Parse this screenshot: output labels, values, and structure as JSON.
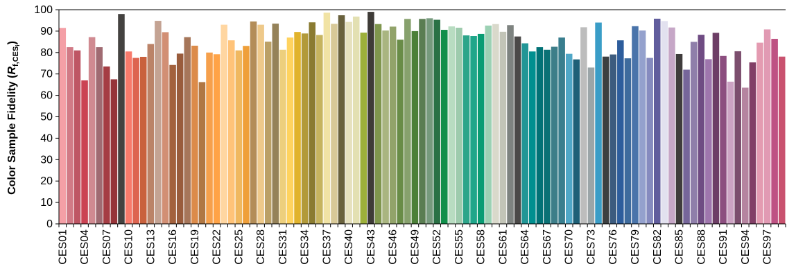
{
  "chart_data": {
    "type": "bar",
    "title": "",
    "xlabel": "",
    "ylabel": "Color Sample Fidelity (",
    "ylabel_var": "R",
    "ylabel_sub": "f,CES",
    "ylabel_sub_i": "i",
    "ylabel_close": ")",
    "ylim": [
      0,
      100
    ],
    "yticks": [
      0,
      10,
      20,
      30,
      40,
      50,
      60,
      70,
      80,
      90,
      100
    ],
    "grid": false,
    "categories": [
      "CES01",
      "CES02",
      "CES03",
      "CES04",
      "CES05",
      "CES06",
      "CES07",
      "CES08",
      "CES09",
      "CES10",
      "CES11",
      "CES12",
      "CES13",
      "CES14",
      "CES15",
      "CES16",
      "CES17",
      "CES18",
      "CES19",
      "CES20",
      "CES21",
      "CES22",
      "CES23",
      "CES24",
      "CES25",
      "CES26",
      "CES27",
      "CES28",
      "CES29",
      "CES30",
      "CES31",
      "CES32",
      "CES33",
      "CES34",
      "CES35",
      "CES36",
      "CES37",
      "CES38",
      "CES39",
      "CES40",
      "CES41",
      "CES42",
      "CES43",
      "CES44",
      "CES45",
      "CES46",
      "CES47",
      "CES48",
      "CES49",
      "CES50",
      "CES51",
      "CES52",
      "CES53",
      "CES54",
      "CES55",
      "CES56",
      "CES57",
      "CES58",
      "CES59",
      "CES60",
      "CES61",
      "CES62",
      "CES63",
      "CES64",
      "CES65",
      "CES66",
      "CES67",
      "CES68",
      "CES69",
      "CES70",
      "CES71",
      "CES72",
      "CES73",
      "CES74",
      "CES75",
      "CES76",
      "CES77",
      "CES78",
      "CES79",
      "CES80",
      "CES81",
      "CES82",
      "CES83",
      "CES84",
      "CES85",
      "CES86",
      "CES87",
      "CES88",
      "CES89",
      "CES90",
      "CES91",
      "CES92",
      "CES93",
      "CES94",
      "CES95",
      "CES96",
      "CES97",
      "CES98",
      "CES99"
    ],
    "tick_labels_shown": [
      "CES01",
      "CES04",
      "CES07",
      "CES10",
      "CES13",
      "CES16",
      "CES19",
      "CES22",
      "CES25",
      "CES28",
      "CES31",
      "CES34",
      "CES37",
      "CES40",
      "CES43",
      "CES46",
      "CES49",
      "CES52",
      "CES55",
      "CES58",
      "CES61",
      "CES64",
      "CES67",
      "CES70",
      "CES73",
      "CES76",
      "CES79",
      "CES82",
      "CES85",
      "CES88",
      "CES91",
      "CES94",
      "CES97"
    ],
    "values": [
      91.5,
      82.5,
      81,
      67,
      87.2,
      82.5,
      73.5,
      67.5,
      98,
      80.5,
      77.5,
      78,
      84,
      94.8,
      89.5,
      74.2,
      79.5,
      87.2,
      83.2,
      66.2,
      80,
      79.2,
      93,
      85.7,
      81,
      83.1,
      94.5,
      93,
      85.1,
      93.5,
      81.3,
      87,
      89.6,
      88.9,
      94.1,
      88.2,
      98.6,
      93.4,
      97.4,
      94.3,
      96.8,
      89.3,
      99,
      93.3,
      90.3,
      92.1,
      86,
      95.7,
      90,
      95.7,
      96,
      95.3,
      90.6,
      92.2,
      91.6,
      88,
      87.7,
      88.7,
      92.6,
      93.3,
      89.7,
      92.8,
      87.5,
      84.3,
      80.5,
      82.5,
      81.3,
      82.7,
      87,
      79.4,
      76.8,
      91.8,
      73,
      94,
      78.1,
      79.1,
      85.7,
      77.3,
      92.3,
      90.3,
      77.5,
      95.8,
      94.7,
      91.7,
      79.3,
      72,
      85,
      88.3,
      76.9,
      89.2,
      78.4,
      66.4,
      80.6,
      63.6,
      75.4,
      84.6,
      90.8,
      86.4,
      78.1
    ],
    "colors": [
      "#F49FA6",
      "#D17A86",
      "#BE5664",
      "#CB4353",
      "#D08A91",
      "#A06B72",
      "#A53D44",
      "#963439",
      "#444240",
      "#F87A6B",
      "#DD6450",
      "#C9613D",
      "#BB8368",
      "#C4A393",
      "#D28F74",
      "#A3613D",
      "#995C3C",
      "#A6765A",
      "#DC8B4A",
      "#B07744",
      "#F6A04C",
      "#FFA347",
      "#FFD6A1",
      "#FFC379",
      "#F0B860",
      "#EF9F3A",
      "#B38D58",
      "#EEC98A",
      "#BBA066",
      "#958259",
      "#EDCF7D",
      "#FFD35F",
      "#E1B32C",
      "#B29A3A",
      "#8A7B31",
      "#C6B45F",
      "#F1E3A5",
      "#D8C998",
      "#69613D",
      "#E6E1BE",
      "#E3E0B2",
      "#9DB03B",
      "#3E3B37",
      "#7F964D",
      "#A9B580",
      "#92A36A",
      "#698C47",
      "#87A16D",
      "#4C8038",
      "#5A7D52",
      "#769A7D",
      "#2A7145",
      "#108F4A",
      "#B8DCC1",
      "#9ECBAD",
      "#2DA58A",
      "#1FA68A",
      "#089C73",
      "#9CD1B4",
      "#D9D9CB",
      "#C2C4B7",
      "#7E8380",
      "#4B4948",
      "#219696",
      "#008F8F",
      "#027276",
      "#0A7175",
      "#3D7E89",
      "#397E8E",
      "#4FA7C7",
      "#1E6077",
      "#BDBDBD",
      "#9BA5A8",
      "#3A9DC7",
      "#3C3F41",
      "#3C5B7E",
      "#2D5D9C",
      "#3E6B9D",
      "#4A74AA",
      "#94A1CD",
      "#868BBF",
      "#615D9D",
      "#E2E1EF",
      "#C6A7C7",
      "#3F3C3C",
      "#76669A",
      "#8F7FAA",
      "#6F4C83",
      "#9F76AD",
      "#6D3E66",
      "#8C4E7F",
      "#CCA3C3",
      "#7C4E6E",
      "#B584A0",
      "#823F66",
      "#E49BB1",
      "#E19AB3",
      "#BE5283",
      "#C9526F"
    ]
  }
}
